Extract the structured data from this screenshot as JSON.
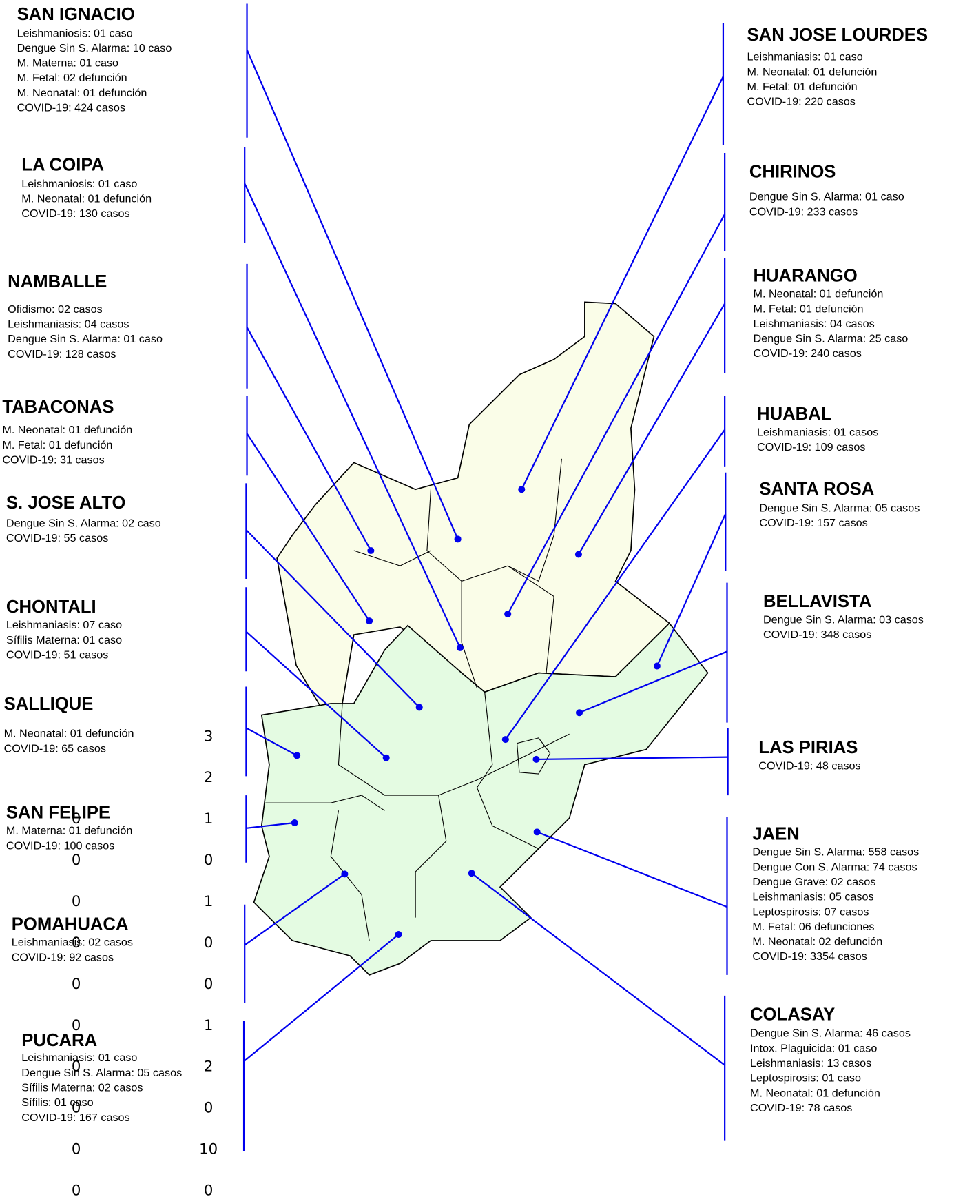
{
  "districts": [
    {
      "name": "SAN IGNACIO",
      "lines": [
        "Leishmaniosis: 01 caso",
        "Dengue Sin S. Alarma: 10 caso",
        "M. Materna: 01 caso",
        "M. Fetal: 02 defunción",
        "M. Neonatal: 01 defunción",
        "COVID-19: 424 casos"
      ]
    },
    {
      "name": "LA COIPA",
      "lines": [
        "Leishmaniosis: 01 caso",
        "M. Neonatal: 01 defunción",
        "COVID-19: 130 casos"
      ]
    },
    {
      "name": "NAMBALLE",
      "lines": [
        "Ofidismo: 02 casos",
        "Leishmaniasis: 04 casos",
        "Dengue Sin S. Alarma: 01 caso",
        "COVID-19: 128 casos"
      ]
    },
    {
      "name": "TABACONAS",
      "lines": [
        "M. Neonatal: 01 defunción",
        "M. Fetal: 01 defunción",
        "COVID-19: 31 casos"
      ]
    },
    {
      "name": "S. JOSE ALTO",
      "lines": [
        "Dengue Sin S. Alarma: 02 caso",
        "COVID-19: 55 casos"
      ]
    },
    {
      "name": "CHONTALI",
      "lines": [
        "Leishmaniasis: 07 caso",
        "Sífilis Materna: 01 caso",
        "COVID-19: 51 casos"
      ]
    },
    {
      "name": "SALLIQUE",
      "lines": [
        "M. Neonatal: 01 defunción",
        "COVID-19: 65 casos"
      ]
    },
    {
      "name": "SAN FELIPE",
      "lines": [
        "M. Materna: 01 defunción",
        "COVID-19: 100 casos"
      ]
    },
    {
      "name": "POMAHUACA",
      "lines": [
        "Leishmaniasis: 02 casos",
        "COVID-19: 92 casos"
      ]
    },
    {
      "name": "PUCARA",
      "lines": [
        "Leishmaniasis: 01 caso",
        "Dengue Sin S. Alarma: 05 casos",
        "Sífilis Materna: 02 casos",
        "Sífilis: 01 caso",
        "COVID-19: 167 casos"
      ]
    },
    {
      "name": "SAN JOSE LOURDES",
      "lines": [
        "Leishmaniasis: 01 caso",
        "M. Neonatal: 01 defunción",
        "M. Fetal: 01 defunción",
        "COVID-19: 220 casos"
      ]
    },
    {
      "name": "CHIRINOS",
      "lines": [
        "Dengue Sin S. Alarma: 01 caso",
        "COVID-19: 233 casos"
      ]
    },
    {
      "name": "HUARANGO",
      "lines": [
        "M. Neonatal: 01 defunción",
        "M. Fetal: 01 defunción",
        "Leishmaniasis: 04 casos",
        "Dengue Sin S. Alarma: 25 caso",
        "COVID-19: 240 casos"
      ]
    },
    {
      "name": "HUABAL",
      "lines": [
        "Leishmaniasis: 01 casos",
        "COVID-19: 109 casos"
      ]
    },
    {
      "name": "SANTA ROSA",
      "lines": [
        "Dengue Sin S. Alarma: 05 casos",
        "COVID-19: 157 casos"
      ]
    },
    {
      "name": "BELLAVISTA",
      "lines": [
        "Dengue Sin S. Alarma: 03 casos",
        "COVID-19: 348 casos"
      ]
    },
    {
      "name": "LAS PIRIAS",
      "lines": [
        "COVID-19: 48 casos"
      ]
    },
    {
      "name": "JAEN",
      "lines": [
        "Dengue Sin S. Alarma: 558 casos",
        "Dengue Con S. Alarma: 74 casos",
        "Dengue Grave: 02 casos",
        "Leishmaniasis: 05 casos",
        "Leptospirosis: 07 casos",
        "M. Fetal: 06 defunciones",
        "M. Neonatal: 02 defunción",
        "COVID-19: 3354 casos"
      ]
    },
    {
      "name": "COLASAY",
      "lines": [
        "Dengue Sin S. Alarma: 46 casos",
        "Intox. Plaguicida: 01 caso",
        "Leishmaniasis: 13 casos",
        "Leptospirosis: 01 caso",
        "M. Neonatal: 01 defunción",
        "COVID-19: 78 casos"
      ]
    }
  ],
  "stray_numbers": {
    "left": [
      "0",
      "0",
      "0",
      "0",
      "0",
      "0",
      "0",
      "0",
      "0",
      "0"
    ],
    "right": [
      "3",
      "2",
      "1",
      "0",
      "1",
      "0",
      "0",
      "1",
      "2",
      "0",
      "10",
      "0"
    ]
  }
}
